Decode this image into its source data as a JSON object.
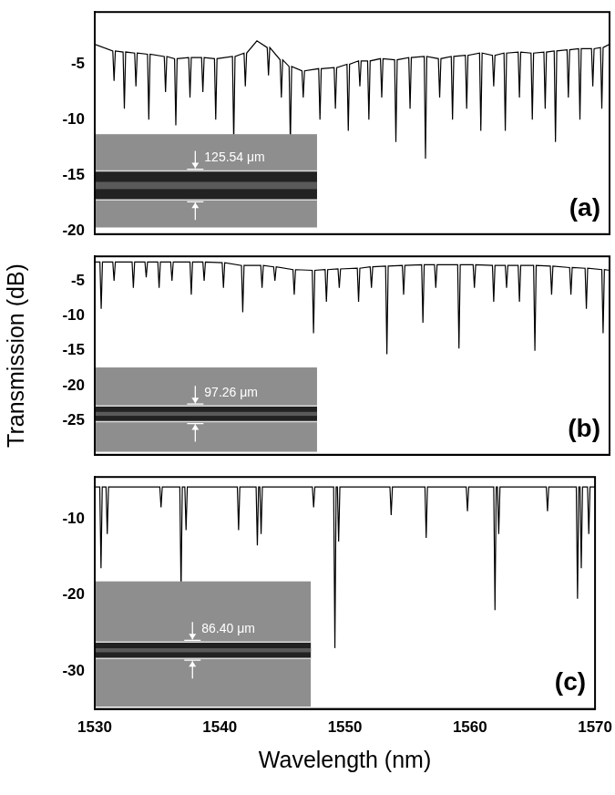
{
  "chart_data": [
    {
      "type": "line",
      "panel_label": "(a)",
      "inset_label": "125.54 μm",
      "color": "#000000",
      "tick_labels": "y",
      "xlim": [
        1530,
        1570
      ],
      "xticks": [
        1530,
        1540,
        1550,
        1560,
        1570
      ],
      "ylim": [
        -20.3,
        -0.3
      ],
      "yticks": [
        -20,
        -15,
        -10,
        -5
      ],
      "x": [
        1530,
        1531.4,
        1531.5,
        1531.6,
        1532.2,
        1532.3,
        1532.4,
        1533.1,
        1533.2,
        1533.3,
        1534.1,
        1534.2,
        1534.3,
        1535.4,
        1535.5,
        1535.6,
        1536.2,
        1536.3,
        1536.4,
        1537.3,
        1537.4,
        1537.5,
        1538.3,
        1538.4,
        1538.5,
        1539.3,
        1539.4,
        1539.5,
        1540.7,
        1540.8,
        1540.9,
        1541.6,
        1541.7,
        1541.8,
        1542.6,
        1543.4,
        1543.5,
        1543.6,
        1544.4,
        1544.5,
        1544.6,
        1545.1,
        1545.2,
        1545.3,
        1546.1,
        1546.2,
        1546.3,
        1547.4,
        1547.5,
        1547.6,
        1548.6,
        1548.7,
        1548.8,
        1549.6,
        1549.7,
        1549.8,
        1550.5,
        1550.6,
        1550.7,
        1551.2,
        1551.3,
        1551.4,
        1552.2,
        1552.3,
        1552.4,
        1553.3,
        1553.4,
        1553.5,
        1554.4,
        1554.5,
        1554.6,
        1555.6,
        1555.7,
        1555.8,
        1556.7,
        1556.8,
        1556.9,
        1557.7,
        1557.8,
        1557.9,
        1558.8,
        1558.9,
        1559.0,
        1559.9,
        1560.0,
        1560.1,
        1560.9,
        1561.0,
        1561.1,
        1561.8,
        1561.9,
        1562.0,
        1562.9,
        1563.0,
        1563.1,
        1563.9,
        1564.0,
        1564.1,
        1564.9,
        1565.0,
        1565.1,
        1565.7,
        1565.8,
        1565.9,
        1566.7,
        1566.8,
        1566.9,
        1567.6,
        1567.7,
        1567.8,
        1568.6,
        1568.7,
        1568.8,
        1569.3,
        1569.4,
        1569.5,
        1570
      ],
      "values": [
        -3.2,
        -3.8,
        -6.5,
        -3.8,
        -3.9,
        -9,
        -3.9,
        -4.0,
        -7,
        -4.0,
        -4.1,
        -10,
        -4.1,
        -4.3,
        -7.5,
        -4.3,
        -4.5,
        -10.5,
        -4.5,
        -4.4,
        -8,
        -4.4,
        -4.4,
        -7.5,
        -4.4,
        -4.5,
        -10,
        -4.5,
        -4.3,
        -12,
        -4.3,
        -4.0,
        -7,
        -4.0,
        -2.9,
        -3.5,
        -6,
        -3.5,
        -4.6,
        -8,
        -4.6,
        -5.2,
        -12.2,
        -5.2,
        -5.6,
        -8,
        -5.6,
        -5.4,
        -10,
        -5.4,
        -5.3,
        -9,
        -5.3,
        -5.0,
        -11,
        -5.0,
        -4.7,
        -7,
        -4.7,
        -4.7,
        -10,
        -4.7,
        -4.5,
        -8,
        -4.5,
        -4.6,
        -12,
        -4.6,
        -4.4,
        -9,
        -4.4,
        -4.3,
        -13.5,
        -4.3,
        -4.5,
        -8,
        -4.5,
        -4.3,
        -10,
        -4.3,
        -4.2,
        -9,
        -4.2,
        -4.0,
        -11,
        -4.0,
        -4.2,
        -7,
        -4.2,
        -4.0,
        -11,
        -4.0,
        -3.9,
        -8,
        -3.9,
        -4.0,
        -10,
        -4.0,
        -3.9,
        -9,
        -3.9,
        -3.8,
        -12,
        -3.8,
        -3.7,
        -8,
        -3.7,
        -3.6,
        -10,
        -3.6,
        -3.6,
        -7,
        -3.6,
        -3.5,
        -9,
        -3.5,
        -3.2
      ]
    },
    {
      "type": "line",
      "panel_label": "(b)",
      "inset_label": "97.26 μm",
      "color": "#000000",
      "tick_labels": "y",
      "y_label": "Transmission (dB)",
      "xlim": [
        1530,
        1570
      ],
      "xticks": [
        1530,
        1540,
        1550,
        1560,
        1570
      ],
      "ylim": [
        -29.9,
        -1.5
      ],
      "yticks": [
        -25,
        -20,
        -15,
        -10,
        -5
      ],
      "x": [
        1530,
        1530.4,
        1530.5,
        1530.6,
        1531.4,
        1531.5,
        1531.6,
        1532.9,
        1533,
        1533.1,
        1533.9,
        1534,
        1534.1,
        1534.9,
        1535,
        1535.1,
        1535.9,
        1536,
        1536.1,
        1537.4,
        1537.5,
        1537.6,
        1538.4,
        1538.5,
        1538.6,
        1539.9,
        1540,
        1540.1,
        1541.4,
        1541.5,
        1541.6,
        1542.9,
        1543,
        1543.1,
        1543.9,
        1544,
        1544.1,
        1545.4,
        1545.5,
        1545.6,
        1546.9,
        1547,
        1547.1,
        1547.9,
        1548,
        1548.1,
        1548.9,
        1549,
        1549.1,
        1550.4,
        1550.5,
        1550.6,
        1551.4,
        1551.5,
        1551.6,
        1552.6,
        1552.7,
        1552.8,
        1553.9,
        1554,
        1554.1,
        1555.4,
        1555.5,
        1555.6,
        1556.4,
        1556.5,
        1556.6,
        1558.2,
        1558.3,
        1558.4,
        1559.4,
        1559.5,
        1559.6,
        1560.9,
        1561,
        1561.1,
        1561.9,
        1562,
        1562.1,
        1562.9,
        1563,
        1563.1,
        1564.1,
        1564.2,
        1564.3,
        1565.4,
        1565.5,
        1565.6,
        1566.9,
        1567,
        1567.1,
        1568.1,
        1568.2,
        1568.3,
        1569.4,
        1569.5,
        1569.6,
        1570
      ],
      "values": [
        -2.3,
        -2.3,
        -9,
        -2.3,
        -2.3,
        -5,
        -2.3,
        -2.3,
        -6,
        -2.3,
        -2.3,
        -4.5,
        -2.3,
        -2.3,
        -6,
        -2.3,
        -2.3,
        -5,
        -2.3,
        -2.3,
        -7,
        -2.3,
        -2.3,
        -5,
        -2.3,
        -2.4,
        -6,
        -2.4,
        -2.8,
        -9.5,
        -2.8,
        -2.8,
        -6,
        -2.8,
        -3.0,
        -5,
        -3.0,
        -3.4,
        -7,
        -3.4,
        -3.5,
        -12.5,
        -3.5,
        -3.4,
        -8,
        -3.4,
        -3.3,
        -6,
        -3.3,
        -3.2,
        -8,
        -3.2,
        -3.0,
        -6,
        -3.0,
        -2.9,
        -15.5,
        -2.9,
        -2.8,
        -7,
        -2.8,
        -2.7,
        -11,
        -2.7,
        -2.7,
        -6,
        -2.7,
        -2.7,
        -14.7,
        -2.7,
        -2.7,
        -6,
        -2.7,
        -2.8,
        -8,
        -2.8,
        -2.8,
        -6,
        -2.8,
        -2.8,
        -8,
        -2.8,
        -2.8,
        -15,
        -2.8,
        -2.9,
        -7,
        -2.9,
        -3.1,
        -7,
        -3.1,
        -3.2,
        -9,
        -3.2,
        -3.4,
        -12.5,
        -3.4,
        -3.5
      ]
    },
    {
      "type": "line",
      "panel_label": "(c)",
      "inset_label": "86.40 μm",
      "color": "#000000",
      "x_label": "Wavelength (nm)",
      "xlim": [
        1530,
        1570
      ],
      "xticks": [
        1530,
        1540,
        1550,
        1560,
        1570
      ],
      "ylim": [
        -35,
        -4.5
      ],
      "yticks": [
        -30,
        -20,
        -10
      ],
      "x": [
        1530,
        1530.4,
        1530.5,
        1530.6,
        1530.9,
        1531,
        1531.1,
        1535.2,
        1535.3,
        1535.4,
        1536.8,
        1536.9,
        1537.0,
        1537.2,
        1537.3,
        1537.4,
        1541.4,
        1541.5,
        1541.6,
        1542.9,
        1543,
        1543.1,
        1543.2,
        1543.3,
        1543.4,
        1547.4,
        1547.5,
        1547.6,
        1549.1,
        1549.2,
        1549.3,
        1549.4,
        1549.5,
        1549.6,
        1553.6,
        1553.7,
        1553.8,
        1556.4,
        1556.5,
        1556.6,
        1559.7,
        1559.8,
        1559.9,
        1561.9,
        1562,
        1562.1,
        1562.2,
        1562.3,
        1562.4,
        1566.1,
        1566.2,
        1566.3,
        1568.5,
        1568.6,
        1568.7,
        1568.8,
        1568.9,
        1569.0,
        1569.4,
        1569.5,
        1569.6,
        1570
      ],
      "values": [
        -5.8,
        -5.8,
        -16.5,
        -5.8,
        -5.8,
        -12,
        -5.8,
        -5.8,
        -8.5,
        -5.8,
        -5.8,
        -19.5,
        -5.8,
        -5.8,
        -11.5,
        -5.8,
        -5.8,
        -11.5,
        -5.8,
        -5.8,
        -13.5,
        -5.8,
        -5.8,
        -12,
        -5.8,
        -5.8,
        -8.5,
        -5.8,
        -5.8,
        -27,
        -5.8,
        -5.8,
        -13,
        -5.8,
        -5.8,
        -9.5,
        -5.8,
        -5.8,
        -12.5,
        -5.8,
        -5.8,
        -9,
        -5.8,
        -5.8,
        -22,
        -5.8,
        -5.8,
        -12,
        -5.8,
        -5.8,
        -9,
        -5.8,
        -5.8,
        -20.5,
        -5.8,
        -5.8,
        -16.5,
        -5.8,
        -5.8,
        -12,
        -5.8,
        -5.8
      ]
    }
  ]
}
